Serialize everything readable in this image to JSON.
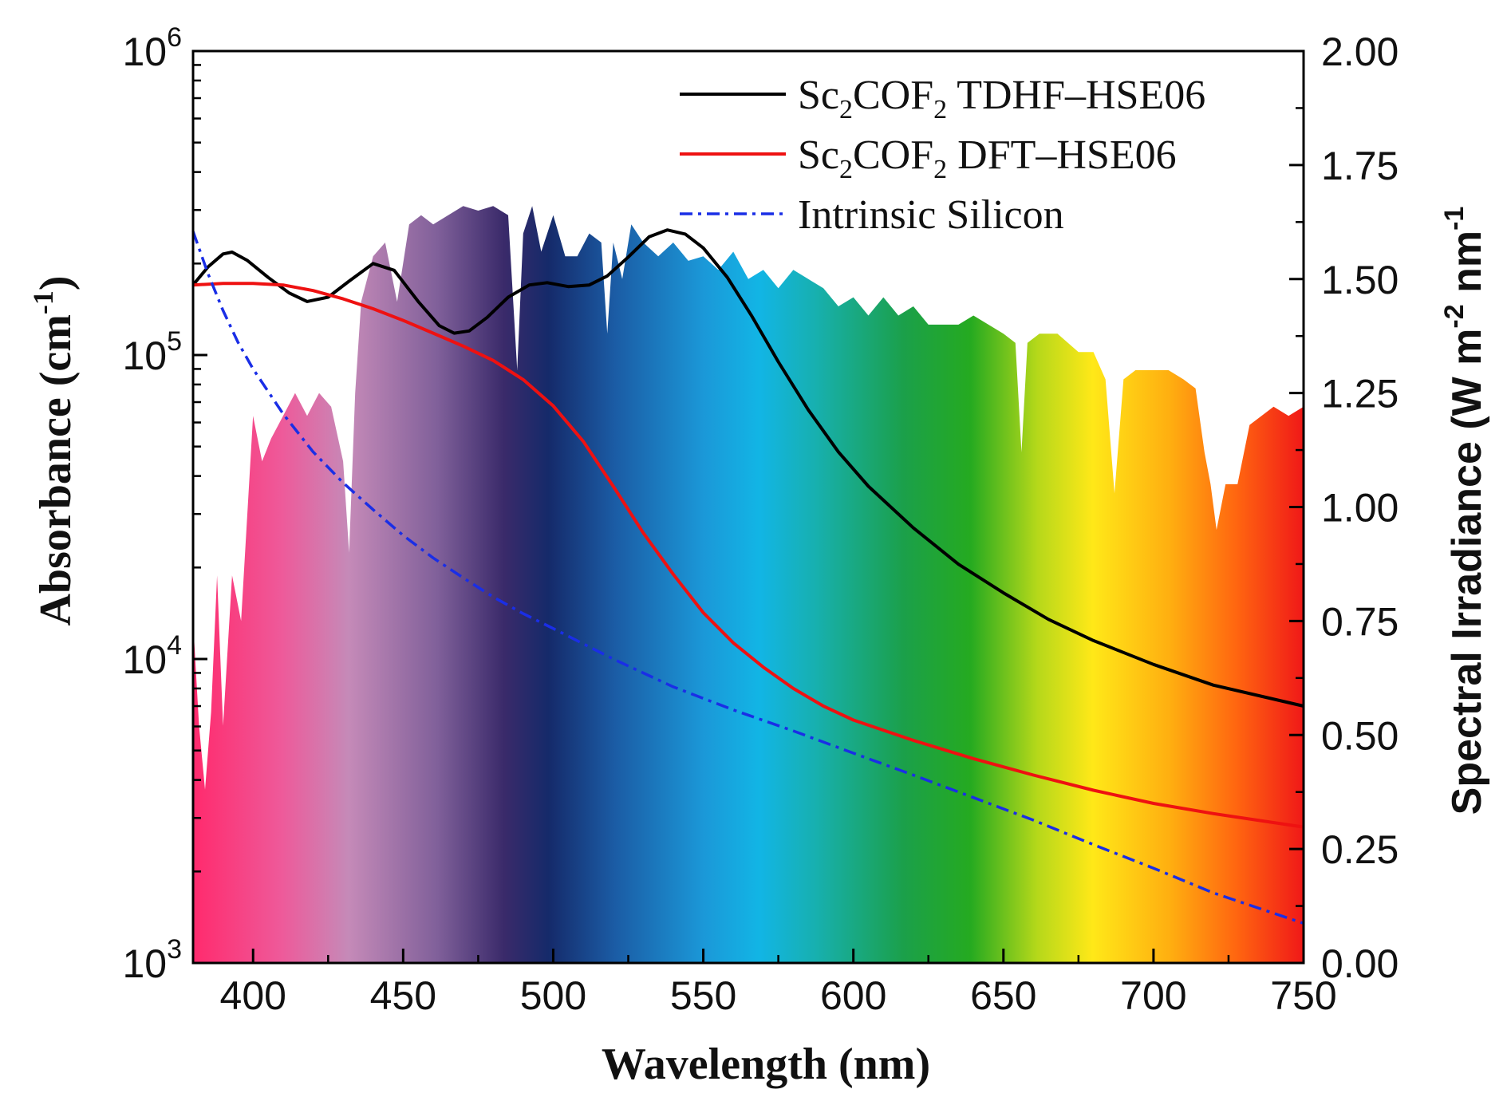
{
  "chart_data": {
    "type": "line",
    "xlabel": "Wavelength (nm)",
    "ylabel_left": {
      "text": "Absorbance (cm",
      "sup": "-1",
      "close": ")"
    },
    "ylabel_right": {
      "text": "Spectral Irradiance (W m",
      "sup1": "-2",
      "mid": " nm",
      "sup2": "-1"
    },
    "xlim": [
      380,
      750
    ],
    "ylim_left": [
      1000,
      1000000
    ],
    "ylim_left_scale": "log",
    "ylim_right": [
      0,
      2.0
    ],
    "x_ticks": [
      "400",
      "450",
      "500",
      "550",
      "600",
      "650",
      "700",
      "750"
    ],
    "y_left_ticks": [
      {
        "base": "10",
        "exp": "3"
      },
      {
        "base": "10",
        "exp": "4"
      },
      {
        "base": "10",
        "exp": "5"
      },
      {
        "base": "10",
        "exp": "6"
      }
    ],
    "y_right_ticks": [
      "0.00",
      "0.25",
      "0.50",
      "0.75",
      "1.00",
      "1.25",
      "1.50",
      "1.75",
      "2.00"
    ],
    "legend_position": "top-right",
    "series": [
      {
        "name": "Sc2COF2 TDHF–HSE06",
        "name_parts": {
          "a": "Sc",
          "s1": "2",
          "b": "COF",
          "s2": "2",
          "c": " TDHF–HSE06"
        },
        "color": "#000000",
        "style": "solid",
        "axis": "left",
        "x": [
          380,
          385,
          390,
          393,
          398,
          405,
          412,
          418,
          425,
          432,
          440,
          447,
          455,
          462,
          467,
          472,
          478,
          485,
          492,
          498,
          505,
          512,
          518,
          525,
          532,
          538,
          544,
          550,
          558,
          566,
          575,
          585,
          595,
          605,
          620,
          635,
          650,
          665,
          680,
          700,
          720,
          750
        ],
        "y": [
          170000,
          195000,
          215000,
          218000,
          205000,
          180000,
          160000,
          150000,
          155000,
          175000,
          200000,
          190000,
          150000,
          125000,
          118000,
          120000,
          133000,
          155000,
          170000,
          173000,
          168000,
          170000,
          182000,
          210000,
          245000,
          258000,
          250000,
          225000,
          180000,
          135000,
          95000,
          66000,
          48000,
          37000,
          27000,
          20500,
          16500,
          13500,
          11500,
          9600,
          8200,
          7000
        ]
      },
      {
        "name": "Sc2COF2 DFT–HSE06",
        "name_parts": {
          "a": "Sc",
          "s1": "2",
          "b": "COF",
          "s2": "2",
          "c": " DFT–HSE06"
        },
        "color": "#ee1111",
        "style": "solid",
        "axis": "left",
        "x": [
          380,
          390,
          400,
          410,
          420,
          430,
          440,
          450,
          460,
          470,
          480,
          490,
          500,
          510,
          520,
          530,
          540,
          550,
          560,
          570,
          580,
          590,
          600,
          620,
          640,
          660,
          680,
          700,
          720,
          750
        ],
        "y": [
          170000,
          172000,
          172000,
          170000,
          163000,
          153000,
          142000,
          130000,
          118000,
          107000,
          96000,
          83000,
          68000,
          52000,
          37000,
          26000,
          19000,
          14200,
          11300,
          9400,
          8000,
          7000,
          6300,
          5400,
          4700,
          4150,
          3700,
          3350,
          3100,
          2800
        ]
      },
      {
        "name": "Intrinsic Silicon",
        "color": "#1a2ee6",
        "style": "dashdot",
        "axis": "left",
        "x": [
          380,
          385,
          390,
          395,
          400,
          410,
          420,
          430,
          440,
          450,
          460,
          470,
          480,
          490,
          500,
          520,
          540,
          560,
          580,
          600,
          620,
          640,
          660,
          680,
          700,
          720,
          750
        ],
        "y": [
          255000,
          185000,
          140000,
          110000,
          90000,
          64000,
          48000,
          38000,
          31000,
          25500,
          21500,
          18500,
          16000,
          14100,
          12600,
          10000,
          8100,
          6800,
          5800,
          4900,
          4150,
          3500,
          2950,
          2450,
          2050,
          1700,
          1350
        ]
      }
    ],
    "background": {
      "name": "Spectral irradiance",
      "axis": "right",
      "x": [
        380,
        382,
        384,
        386,
        388,
        390,
        393,
        396,
        400,
        403,
        406,
        410,
        414,
        418,
        422,
        426,
        430,
        432,
        434,
        436,
        440,
        444,
        448,
        452,
        456,
        460,
        465,
        470,
        475,
        480,
        485,
        488,
        490,
        493,
        496,
        500,
        504,
        508,
        512,
        516,
        518,
        520,
        523,
        526,
        530,
        535,
        540,
        545,
        550,
        555,
        560,
        565,
        570,
        575,
        580,
        585,
        590,
        595,
        600,
        605,
        610,
        615,
        620,
        625,
        630,
        635,
        640,
        645,
        650,
        654,
        656,
        658,
        662,
        668,
        675,
        680,
        684,
        687,
        690,
        694,
        700,
        705,
        710,
        714,
        717,
        719,
        721,
        724,
        728,
        732,
        736,
        740,
        745,
        750
      ],
      "y": [
        0.75,
        0.52,
        0.38,
        0.55,
        0.85,
        0.52,
        0.85,
        0.75,
        1.2,
        1.1,
        1.15,
        1.2,
        1.25,
        1.2,
        1.25,
        1.22,
        1.1,
        0.9,
        1.25,
        1.45,
        1.55,
        1.58,
        1.45,
        1.62,
        1.64,
        1.62,
        1.64,
        1.66,
        1.65,
        1.66,
        1.64,
        1.3,
        1.6,
        1.66,
        1.56,
        1.64,
        1.55,
        1.55,
        1.6,
        1.58,
        1.38,
        1.58,
        1.5,
        1.62,
        1.58,
        1.55,
        1.58,
        1.54,
        1.55,
        1.52,
        1.56,
        1.5,
        1.52,
        1.48,
        1.52,
        1.5,
        1.48,
        1.44,
        1.46,
        1.42,
        1.46,
        1.42,
        1.44,
        1.4,
        1.4,
        1.4,
        1.42,
        1.4,
        1.38,
        1.36,
        1.12,
        1.36,
        1.38,
        1.38,
        1.34,
        1.34,
        1.28,
        1.03,
        1.28,
        1.3,
        1.3,
        1.3,
        1.28,
        1.26,
        1.12,
        1.05,
        0.95,
        1.05,
        1.05,
        1.18,
        1.2,
        1.22,
        1.2,
        1.22
      ]
    }
  }
}
